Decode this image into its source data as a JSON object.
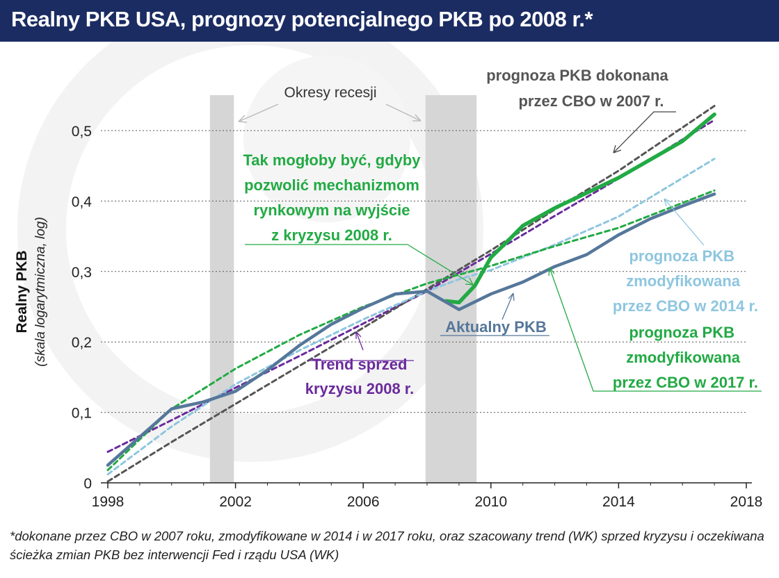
{
  "title": "Realny PKB USA, prognozy potencjalnego PKB po 2008 r.*",
  "footnote": "*dokonane przez CBO w 2007 roku, zmodyfikowane w 2014 i w 2017 roku, oraz szacowany trend (WK) sprzed kryzysu i oczekiwana ścieżka zmian PKB bez interwencji Fed i rządu USA (WK)",
  "colors": {
    "actual": "#55779a",
    "cbo2007": "#555555",
    "cbo2014": "#8ec6df",
    "cbo2017": "#22aa44",
    "market": "#22aa44",
    "trend": "#6a2a9c",
    "recession": "#d6d6d6",
    "title_bg": "#1b2c63"
  },
  "chart_data": {
    "type": "line",
    "title": "Realny PKB USA, prognozy potencjalnego PKB po 2008 r.*",
    "ylabel": "Realny PKB",
    "ylabel_sub": "(skala logarytmiczna, log)",
    "xlim": [
      1998,
      2018
    ],
    "ylim": [
      0,
      0.55
    ],
    "x_ticks": [
      1998,
      2002,
      2006,
      2010,
      2014,
      2018
    ],
    "y_ticks": [
      0,
      0.1,
      0.2,
      0.3,
      0.4,
      0.5
    ],
    "y_tick_labels": [
      "0",
      "0,1",
      "0,2",
      "0,3",
      "0,4",
      "0,5"
    ],
    "grid": "horizontal-dotted",
    "recessions": [
      [
        2001.2,
        2001.95
      ],
      [
        2007.95,
        2009.55
      ]
    ],
    "series": [
      {
        "key": "trend",
        "style": "dashed",
        "x": [
          1998,
          2000,
          2002,
          2004,
          2006,
          2008,
          2010,
          2012,
          2014,
          2017
        ],
        "y": [
          0.044,
          0.089,
          0.135,
          0.18,
          0.226,
          0.272,
          0.325,
          0.379,
          0.432,
          0.515
        ]
      },
      {
        "key": "cbo2007",
        "style": "dashed",
        "x": [
          1998,
          2000,
          2002,
          2004,
          2006,
          2008,
          2010,
          2012,
          2014,
          2017
        ],
        "y": [
          0.002,
          0.058,
          0.112,
          0.166,
          0.22,
          0.275,
          0.33,
          0.388,
          0.443,
          0.535
        ]
      },
      {
        "key": "cbo2014",
        "style": "dashed",
        "x": [
          1998,
          2000,
          2002,
          2004,
          2006,
          2008,
          2009,
          2010,
          2012,
          2014,
          2017
        ],
        "y": [
          0.012,
          0.08,
          0.14,
          0.188,
          0.232,
          0.272,
          0.289,
          0.302,
          0.338,
          0.378,
          0.46
        ]
      },
      {
        "key": "cbo2017",
        "style": "dashed",
        "x": [
          1998,
          2000,
          2002,
          2004,
          2006,
          2008,
          2010,
          2012,
          2014,
          2017
        ],
        "y": [
          0.018,
          0.105,
          0.162,
          0.21,
          0.25,
          0.283,
          0.308,
          0.336,
          0.362,
          0.415
        ]
      },
      {
        "key": "market",
        "style": "solid-thick",
        "x": [
          2008.6,
          2009,
          2009.5,
          2010,
          2010.5,
          2011,
          2012,
          2014,
          2016,
          2017
        ],
        "y": [
          0.258,
          0.256,
          0.28,
          0.32,
          0.342,
          0.365,
          0.39,
          0.433,
          0.485,
          0.523
        ]
      },
      {
        "key": "actual",
        "style": "solid",
        "x": [
          1998,
          1999,
          2000,
          2001,
          2002,
          2003,
          2004,
          2005,
          2006,
          2007,
          2008,
          2009,
          2010,
          2011,
          2012,
          2013,
          2014,
          2015,
          2016,
          2017
        ],
        "y": [
          0.025,
          0.065,
          0.105,
          0.115,
          0.13,
          0.16,
          0.195,
          0.225,
          0.248,
          0.268,
          0.272,
          0.246,
          0.268,
          0.285,
          0.307,
          0.324,
          0.352,
          0.375,
          0.393,
          0.41
        ]
      }
    ],
    "annotations": {
      "recessions_label": "Okresy recesji",
      "cbo2007_line1": "prognoza PKB dokonana",
      "cbo2007_line2": "przez CBO w 2007 r.",
      "market_line1": "Tak mogłoby być, gdyby",
      "market_line2": "pozwolić mechanizmom",
      "market_line3": "rynkowym na wyjście",
      "market_line4": "z kryzysu 2008 r.",
      "cbo2014_line1": "prognoza PKB",
      "cbo2014_line2": "zmodyfikowana",
      "cbo2014_line3": "przez CBO w 2014 r.",
      "cbo2017_line1": "prognoza PKB",
      "cbo2017_line2": "zmodyfikowana",
      "cbo2017_line3": "przez CBO w 2017 r.",
      "actual": "Aktualny PKB",
      "trend_line1": "Trend sprzed",
      "trend_line2": "kryzysu 2008 r."
    }
  }
}
